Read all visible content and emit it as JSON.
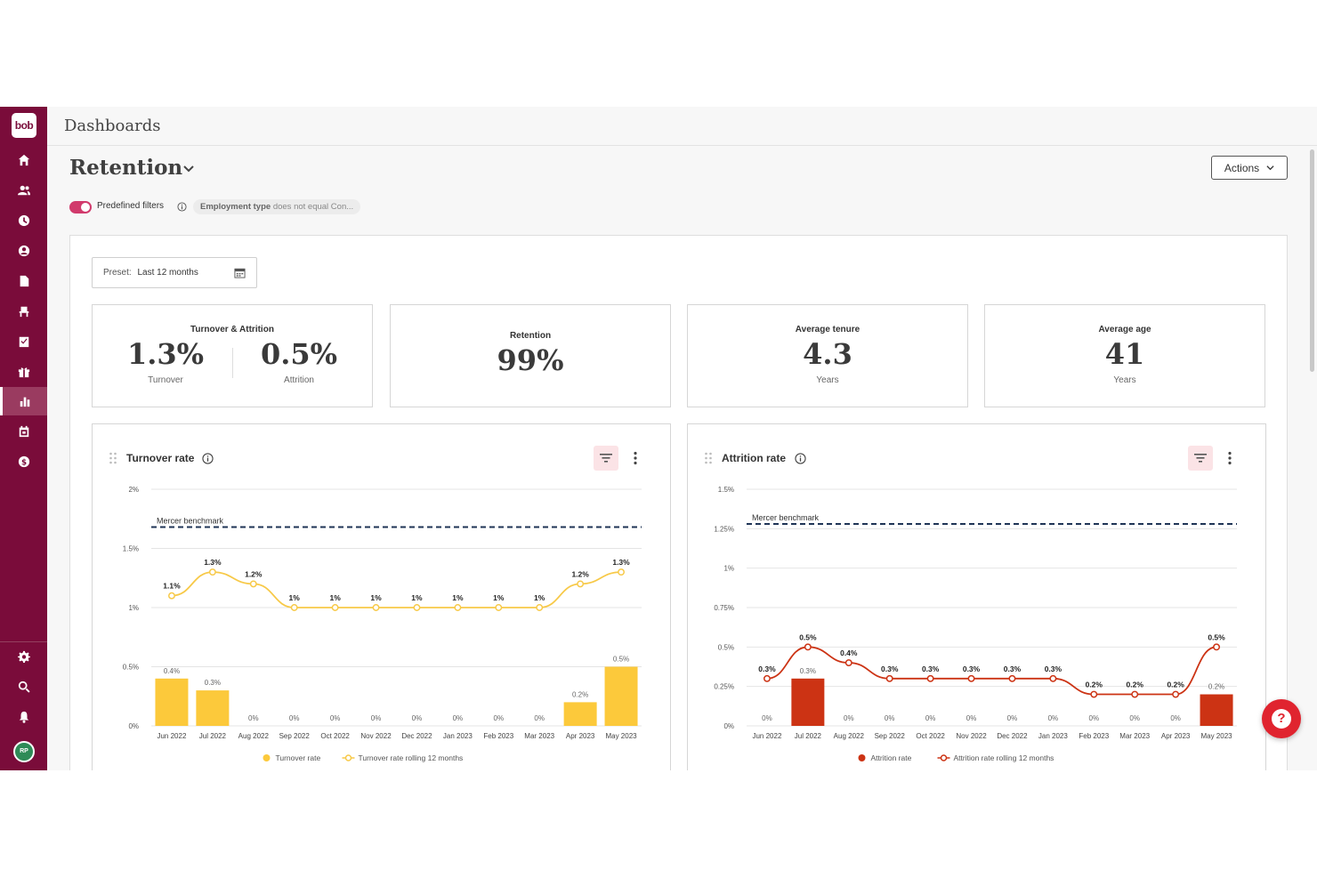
{
  "app": {
    "logo_text": "bob",
    "section_title": "Dashboards",
    "user_initials": "RP"
  },
  "sidebar": {
    "items": [
      {
        "icon": "home-icon"
      },
      {
        "icon": "people-icon"
      },
      {
        "icon": "clock-icon"
      },
      {
        "icon": "user-circle-icon"
      },
      {
        "icon": "document-icon"
      },
      {
        "icon": "desk-chair-icon"
      },
      {
        "icon": "checklist-icon"
      },
      {
        "icon": "gift-icon"
      },
      {
        "icon": "bar-chart-icon",
        "active": true
      },
      {
        "icon": "calendar-icon"
      },
      {
        "icon": "dollar-icon"
      }
    ],
    "bottom_items": [
      {
        "icon": "gear-icon"
      },
      {
        "icon": "search-icon"
      },
      {
        "icon": "bell-icon"
      }
    ]
  },
  "header": {
    "title": "Retention",
    "actions_label": "Actions"
  },
  "filters": {
    "toggle_on": true,
    "label": "Predefined filters",
    "chip_field": "Employment type",
    "chip_rest": " does not equal Con..."
  },
  "preset": {
    "label": "Preset:",
    "value": "Last 12 months"
  },
  "kpis": {
    "turnover_attrition": {
      "title": "Turnover & Attrition",
      "turnover_value": "1.3%",
      "turnover_label": "Turnover",
      "attrition_value": "0.5%",
      "attrition_label": "Attrition"
    },
    "retention": {
      "title": "Retention",
      "value": "99%"
    },
    "tenure": {
      "title": "Average tenure",
      "value": "4.3",
      "unit": "Years"
    },
    "age": {
      "title": "Average age",
      "value": "41",
      "unit": "Years"
    }
  },
  "colors": {
    "turnover": "#fcc93b",
    "attrition": "#cc3314",
    "benchmark": "#1f3456",
    "brand": "#7a0c3a"
  },
  "chart_data": [
    {
      "type": "bar",
      "title": "Turnover rate",
      "categories": [
        "Jun 2022",
        "Jul 2022",
        "Aug 2022",
        "Sep 2022",
        "Oct 2022",
        "Nov 2022",
        "Dec 2022",
        "Jan 2023",
        "Feb 2023",
        "Mar 2023",
        "Apr 2023",
        "May 2023"
      ],
      "series": [
        {
          "name": "Turnover rate",
          "kind": "bar",
          "values": [
            0.4,
            0.3,
            0,
            0,
            0,
            0,
            0,
            0,
            0,
            0,
            0.2,
            0.5
          ],
          "labels": [
            "0.4%",
            "0.3%",
            "0%",
            "0%",
            "0%",
            "0%",
            "0%",
            "0%",
            "0%",
            "0%",
            "0.2%",
            "0.5%"
          ]
        },
        {
          "name": "Turnover rate rolling 12 months",
          "kind": "line",
          "values": [
            1.1,
            1.3,
            1.2,
            1,
            1,
            1,
            1,
            1,
            1,
            1,
            1.2,
            1.3
          ],
          "labels": [
            "1.1%",
            "1.3%",
            "1.2%",
            "1%",
            "1%",
            "1%",
            "1%",
            "1%",
            "1%",
            "1%",
            "1.2%",
            "1.3%"
          ]
        }
      ],
      "benchmark": {
        "label": "Mercer benchmark",
        "value": 1.68
      },
      "ylim": [
        0,
        2
      ],
      "yticks": [
        0,
        0.5,
        1,
        1.5,
        2
      ],
      "ytick_labels": [
        "0%",
        "0.5%",
        "1%",
        "1.5%",
        "2%"
      ],
      "legend_position": "bottom"
    },
    {
      "type": "bar",
      "title": "Attrition rate",
      "categories": [
        "Jun 2022",
        "Jul 2022",
        "Aug 2022",
        "Sep 2022",
        "Oct 2022",
        "Nov 2022",
        "Dec 2022",
        "Jan 2023",
        "Feb 2023",
        "Mar 2023",
        "Apr 2023",
        "May 2023"
      ],
      "series": [
        {
          "name": "Attrition rate",
          "kind": "bar",
          "values": [
            0,
            0.3,
            0,
            0,
            0,
            0,
            0,
            0,
            0,
            0,
            0,
            0.2
          ],
          "labels": [
            "0%",
            "0.3%",
            "0%",
            "0%",
            "0%",
            "0%",
            "0%",
            "0%",
            "0%",
            "0%",
            "0%",
            "0.2%"
          ]
        },
        {
          "name": "Attrition rate rolling 12 months",
          "kind": "line",
          "values": [
            0.3,
            0.5,
            0.4,
            0.3,
            0.3,
            0.3,
            0.3,
            0.3,
            0.2,
            0.2,
            0.2,
            0.5
          ],
          "labels": [
            "0.3%",
            "0.5%",
            "0.4%",
            "0.3%",
            "0.3%",
            "0.3%",
            "0.3%",
            "0.3%",
            "0.2%",
            "0.2%",
            "0.2%",
            "0.5%"
          ]
        }
      ],
      "benchmark": {
        "label": "Mercer benchmark",
        "value": 1.28
      },
      "ylim": [
        0,
        1.5
      ],
      "yticks": [
        0,
        0.25,
        0.5,
        0.75,
        1,
        1.25,
        1.5
      ],
      "ytick_labels": [
        "0%",
        "0.25%",
        "0.5%",
        "0.75%",
        "1%",
        "1.25%",
        "1.5%"
      ],
      "legend_position": "bottom"
    }
  ],
  "help": {
    "label": "?"
  }
}
